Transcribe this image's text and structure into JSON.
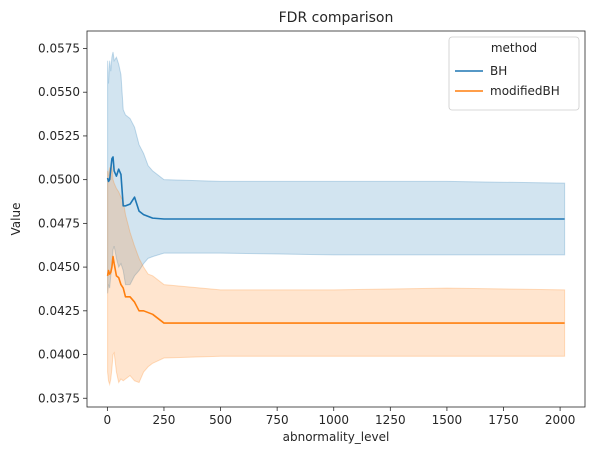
{
  "chart_data": {
    "type": "line",
    "title": "FDR comparison",
    "xlabel": "abnormality_level",
    "ylabel": "Value",
    "xlim": [
      -90,
      2110
    ],
    "ylim": [
      0.037,
      0.0585
    ],
    "xticks": [
      0,
      250,
      500,
      750,
      1000,
      1250,
      1500,
      1750,
      2000
    ],
    "yticks": [
      0.0375,
      0.04,
      0.0425,
      0.045,
      0.0475,
      0.05,
      0.0525,
      0.055,
      0.0575
    ],
    "ytick_labels": [
      "0.0375",
      "0.0400",
      "0.0425",
      "0.0450",
      "0.0475",
      "0.0500",
      "0.0525",
      "0.0550",
      "0.0575"
    ],
    "grid": false,
    "legend": {
      "title": "method",
      "placement": "top-right"
    },
    "series": [
      {
        "name": "BH",
        "color": "#1f77b4",
        "x": [
          1,
          5,
          10,
          15,
          20,
          25,
          30,
          40,
          50,
          60,
          70,
          80,
          100,
          120,
          140,
          160,
          180,
          200,
          250,
          500,
          1000,
          1500,
          2020
        ],
        "y": [
          0.0501,
          0.0499,
          0.05,
          0.0506,
          0.0512,
          0.0513,
          0.0505,
          0.0502,
          0.0506,
          0.0503,
          0.0485,
          0.0485,
          0.0486,
          0.049,
          0.0482,
          0.048,
          0.0479,
          0.0478,
          0.04775,
          0.04775,
          0.04775,
          0.04775,
          0.04775
        ],
        "lower": [
          0.0435,
          0.044,
          0.0438,
          0.0445,
          0.045,
          0.046,
          0.0462,
          0.0455,
          0.045,
          0.0452,
          0.0448,
          0.044,
          0.044,
          0.0445,
          0.0448,
          0.0452,
          0.0455,
          0.0456,
          0.0458,
          0.0458,
          0.0457,
          0.0457,
          0.0457
        ],
        "upper": [
          0.0568,
          0.0555,
          0.0568,
          0.0562,
          0.057,
          0.0573,
          0.0568,
          0.057,
          0.0566,
          0.056,
          0.054,
          0.0537,
          0.0535,
          0.053,
          0.052,
          0.0515,
          0.0508,
          0.0505,
          0.05,
          0.0499,
          0.0499,
          0.0499,
          0.0498
        ]
      },
      {
        "name": "modifiedBH",
        "color": "#ff7f0e",
        "x": [
          1,
          5,
          10,
          15,
          20,
          25,
          30,
          40,
          50,
          60,
          70,
          80,
          100,
          120,
          140,
          160,
          180,
          200,
          250,
          500,
          1000,
          1500,
          2020
        ],
        "y": [
          0.0445,
          0.0448,
          0.0446,
          0.0447,
          0.045,
          0.0456,
          0.0452,
          0.0445,
          0.0444,
          0.044,
          0.0438,
          0.0433,
          0.0433,
          0.043,
          0.0425,
          0.0425,
          0.0424,
          0.0423,
          0.0418,
          0.0418,
          0.0418,
          0.0418,
          0.0418
        ],
        "lower": [
          0.039,
          0.0385,
          0.0383,
          0.0386,
          0.0392,
          0.04,
          0.0401,
          0.039,
          0.0384,
          0.0386,
          0.0385,
          0.0386,
          0.0388,
          0.0385,
          0.0384,
          0.039,
          0.0393,
          0.0395,
          0.0398,
          0.0399,
          0.0399,
          0.0399,
          0.0399
        ],
        "upper": [
          0.0505,
          0.0502,
          0.0507,
          0.05,
          0.0508,
          0.05,
          0.0498,
          0.0495,
          0.0493,
          0.049,
          0.0488,
          0.048,
          0.047,
          0.0462,
          0.0455,
          0.045,
          0.0446,
          0.0445,
          0.044,
          0.0437,
          0.0437,
          0.0438,
          0.0437
        ]
      }
    ]
  }
}
